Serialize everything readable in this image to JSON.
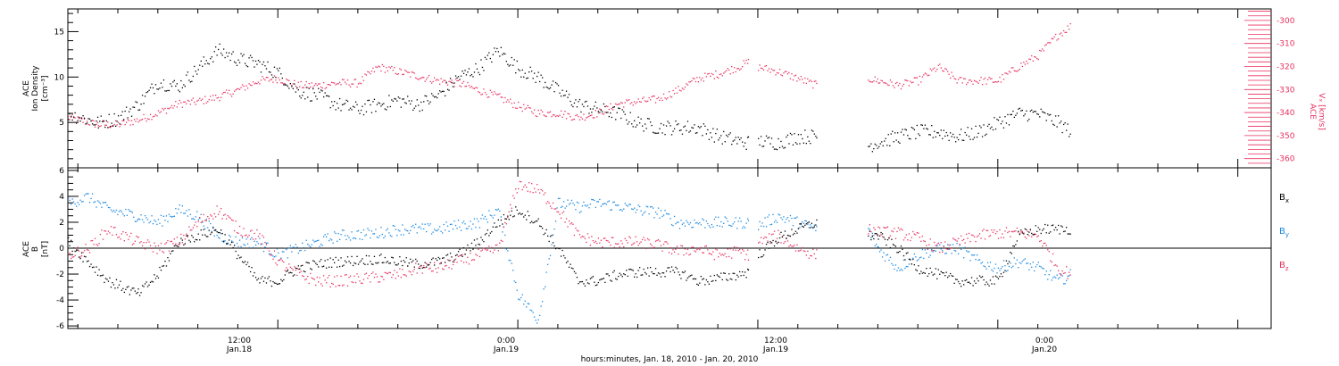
{
  "colors": {
    "black": "#000000",
    "pink": "#e8315f",
    "blue": "#1a88e0"
  },
  "x_axis": {
    "tick_labels": [
      {
        "time": "12:00",
        "date": "Jan.18"
      },
      {
        "time": "0:00",
        "date": "Jan.19"
      },
      {
        "time": "12:00",
        "date": "Jan.19"
      },
      {
        "time": "0:00",
        "date": "Jan.20"
      }
    ],
    "title": "hours:minutes, Jan. 18, 2010 - Jan. 20, 2010"
  },
  "chart_data": [
    {
      "type": "scatter",
      "panel": "top",
      "ylabel_lines": [
        "ACE",
        "Ion Density",
        "[cm⁻³]"
      ],
      "y2label_lines": [
        "ACE",
        "Vₓ [km/s]"
      ],
      "xlim": [
        "2010-01-18 01:30",
        "2010-01-20 13:40"
      ],
      "ylim": [
        0,
        17.5
      ],
      "y_ticks": [
        "5",
        "10",
        "15"
      ],
      "ylim_right": [
        -364,
        -295
      ],
      "y_ticks_right": [
        "-300",
        "-310",
        "-320",
        "-330",
        "-340",
        "-350",
        "-360"
      ],
      "data_gaps": [
        [
          "2010-01-19 11:30",
          "2010-01-19 12:00"
        ],
        [
          "2010-01-19 14:55",
          "2010-01-19 17:30"
        ]
      ],
      "series": [
        {
          "color": "black",
          "axis": "left",
          "x": [
            "2010-01-18 01:30",
            "2010-01-18 03:00",
            "2010-01-18 04:00",
            "2010-01-18 05:00",
            "2010-01-18 06:00",
            "2010-01-18 07:00",
            "2010-01-18 08:00",
            "2010-01-18 09:00",
            "2010-01-18 10:00",
            "2010-01-18 11:00",
            "2010-01-18 12:00",
            "2010-01-18 13:00",
            "2010-01-18 14:00",
            "2010-01-18 15:00",
            "2010-01-18 16:00",
            "2010-01-18 17:00",
            "2010-01-18 18:00",
            "2010-01-18 19:00",
            "2010-01-18 20:00",
            "2010-01-18 21:00",
            "2010-01-18 22:00",
            "2010-01-18 23:00",
            "2010-01-19 00:00",
            "2010-01-19 01:00",
            "2010-01-19 02:00",
            "2010-01-19 03:00",
            "2010-01-19 04:00",
            "2010-01-19 05:00",
            "2010-01-19 06:00",
            "2010-01-19 07:00",
            "2010-01-19 08:00",
            "2010-01-19 09:00",
            "2010-01-19 10:00",
            "2010-01-19 11:00",
            "2010-01-19 11:30",
            "2010-01-19 12:00",
            "2010-01-19 13:00",
            "2010-01-19 14:00",
            "2010-01-19 14:55",
            "2010-01-19 17:30",
            "2010-01-19 19:00",
            "2010-01-19 20:00",
            "2010-01-19 21:00",
            "2010-01-19 22:00",
            "2010-01-19 23:00",
            "2010-01-20 00:00",
            "2010-01-20 01:00",
            "2010-01-20 02:00",
            "2010-01-20 03:00",
            "2010-01-20 03:40"
          ],
          "y": [
            6,
            5,
            5.5,
            7,
            9.5,
            9,
            11,
            13,
            12,
            11.5,
            10.5,
            8.5,
            8,
            7,
            6.5,
            7,
            7.5,
            7,
            8,
            10,
            11,
            13,
            11,
            10,
            8.5,
            7,
            6.5,
            6,
            5,
            4.5,
            4.5,
            4.5,
            3.5,
            3,
            2.8,
            3,
            2.8,
            3.5,
            3.5,
            2.5,
            3.5,
            4,
            4,
            3.5,
            4,
            5,
            6,
            6,
            5,
            4
          ]
        },
        {
          "color": "pink",
          "axis": "right",
          "x": [
            "2010-01-18 01:30",
            "2010-01-18 03:00",
            "2010-01-18 04:00",
            "2010-01-18 05:00",
            "2010-01-18 06:00",
            "2010-01-18 07:00",
            "2010-01-18 08:00",
            "2010-01-18 09:00",
            "2010-01-18 10:00",
            "2010-01-18 11:00",
            "2010-01-18 12:00",
            "2010-01-18 13:00",
            "2010-01-18 14:00",
            "2010-01-18 15:00",
            "2010-01-18 16:00",
            "2010-01-18 17:00",
            "2010-01-18 18:00",
            "2010-01-18 19:00",
            "2010-01-18 20:00",
            "2010-01-18 21:00",
            "2010-01-18 22:00",
            "2010-01-18 23:00",
            "2010-01-19 00:00",
            "2010-01-19 01:00",
            "2010-01-19 02:00",
            "2010-01-19 03:00",
            "2010-01-19 04:00",
            "2010-01-19 05:00",
            "2010-01-19 06:00",
            "2010-01-19 07:00",
            "2010-01-19 08:00",
            "2010-01-19 09:00",
            "2010-01-19 10:00",
            "2010-01-19 11:00",
            "2010-01-19 11:30",
            "2010-01-19 12:00",
            "2010-01-19 13:00",
            "2010-01-19 14:00",
            "2010-01-19 14:55",
            "2010-01-19 17:30",
            "2010-01-19 18:00",
            "2010-01-19 19:00",
            "2010-01-19 20:00",
            "2010-01-19 21:00",
            "2010-01-19 22:00",
            "2010-01-19 23:00",
            "2010-01-20 00:00",
            "2010-01-20 01:00",
            "2010-01-20 02:00",
            "2010-01-20 03:00",
            "2010-01-20 03:40"
          ],
          "y": [
            -342,
            -345,
            -345,
            -343,
            -340,
            -336,
            -335,
            -333,
            -330,
            -326,
            -325,
            -328,
            -328,
            -327,
            -327,
            -320,
            -322,
            -324,
            -326,
            -327,
            -330,
            -333,
            -337,
            -340,
            -340,
            -342,
            -340,
            -336,
            -335,
            -334,
            -330,
            -325,
            -323,
            -320,
            -318,
            -320,
            -322,
            -325,
            -328,
            -325,
            -326,
            -328,
            -326,
            -320,
            -326,
            -326,
            -326,
            -320,
            -315,
            -306,
            -302
          ]
        }
      ]
    },
    {
      "type": "scatter",
      "panel": "bottom",
      "ylabel_lines": [
        "ACE",
        "B",
        "[nT]"
      ],
      "xlim": [
        "2010-01-18 01:30",
        "2010-01-20 13:40"
      ],
      "ylim": [
        -6.2,
        6.2
      ],
      "y_ticks": [
        "-6",
        "-4",
        "-2",
        "0",
        "2",
        "4",
        "6"
      ],
      "data_gaps": [
        [
          "2010-01-19 11:30",
          "2010-01-19 12:00"
        ],
        [
          "2010-01-19 14:55",
          "2010-01-19 17:30"
        ]
      ],
      "series": [
        {
          "name": "Bx",
          "legend_base": "B",
          "legend_sub": "x",
          "color": "black",
          "x": [
            "2010-01-18 01:30",
            "2010-01-18 02:30",
            "2010-01-18 03:30",
            "2010-01-18 05:00",
            "2010-01-18 06:00",
            "2010-01-18 07:00",
            "2010-01-18 08:00",
            "2010-01-18 09:00",
            "2010-01-18 10:00",
            "2010-01-18 11:00",
            "2010-01-18 12:00",
            "2010-01-18 13:00",
            "2010-01-18 14:00",
            "2010-01-18 15:00",
            "2010-01-18 17:00",
            "2010-01-18 18:00",
            "2010-01-18 19:00",
            "2010-01-18 20:00",
            "2010-01-18 21:00",
            "2010-01-18 22:00",
            "2010-01-18 23:00",
            "2010-01-19 00:00",
            "2010-01-19 01:00",
            "2010-01-19 02:00",
            "2010-01-19 03:00",
            "2010-01-19 04:00",
            "2010-01-19 05:00",
            "2010-01-19 06:00",
            "2010-01-19 07:00",
            "2010-01-19 08:00",
            "2010-01-19 09:00",
            "2010-01-19 10:00",
            "2010-01-19 11:00",
            "2010-01-19 11:30",
            "2010-01-19 12:00",
            "2010-01-19 13:00",
            "2010-01-19 14:00",
            "2010-01-19 14:55",
            "2010-01-19 17:30",
            "2010-01-19 18:00",
            "2010-01-19 19:00",
            "2010-01-19 20:00",
            "2010-01-19 21:00",
            "2010-01-19 22:00",
            "2010-01-19 23:00",
            "2010-01-20 00:00",
            "2010-01-20 01:00",
            "2010-01-20 02:00",
            "2010-01-20 03:00",
            "2010-01-20 03:40"
          ],
          "y": [
            0.5,
            -1,
            -2.5,
            -3.5,
            -2,
            0.5,
            1,
            1.5,
            -0.5,
            -2.5,
            -2.5,
            -1.5,
            -1.2,
            -1,
            -0.8,
            -1,
            -1.2,
            -1,
            -0.5,
            0.5,
            2,
            3,
            2,
            0,
            -2.5,
            -2.5,
            -2,
            -1.8,
            -1.8,
            -1.8,
            -2.5,
            -2.3,
            -2,
            -1.8,
            -0.5,
            0.8,
            1.5,
            2,
            1,
            1,
            0,
            -1.5,
            -2,
            -2.5,
            -2.5,
            -2.5,
            1,
            1.5,
            1.5,
            1.5
          ]
        },
        {
          "name": "By",
          "legend_base": "B",
          "legend_sub": "y",
          "color": "blue",
          "x": [
            "2010-01-18 01:30",
            "2010-01-18 02:30",
            "2010-01-18 03:30",
            "2010-01-18 05:00",
            "2010-01-18 06:00",
            "2010-01-18 07:00",
            "2010-01-18 08:00",
            "2010-01-18 09:00",
            "2010-01-18 10:00",
            "2010-01-18 11:00",
            "2010-01-18 12:00",
            "2010-01-18 13:00",
            "2010-01-18 14:00",
            "2010-01-18 15:00",
            "2010-01-18 17:00",
            "2010-01-18 18:00",
            "2010-01-18 19:00",
            "2010-01-18 20:00",
            "2010-01-18 21:00",
            "2010-01-18 22:00",
            "2010-01-18 23:00",
            "2010-01-19 00:00",
            "2010-01-19 01:00",
            "2010-01-19 02:00",
            "2010-01-19 03:00",
            "2010-01-19 04:00",
            "2010-01-19 05:00",
            "2010-01-19 06:00",
            "2010-01-19 07:00",
            "2010-01-19 08:00",
            "2010-01-19 09:00",
            "2010-01-19 10:00",
            "2010-01-19 11:00",
            "2010-01-19 11:30",
            "2010-01-19 12:00",
            "2010-01-19 13:00",
            "2010-01-19 14:00",
            "2010-01-19 14:55",
            "2010-01-19 17:30",
            "2010-01-19 18:00",
            "2010-01-19 19:00",
            "2010-01-19 20:00",
            "2010-01-19 21:00",
            "2010-01-19 22:00",
            "2010-01-19 23:00",
            "2010-01-20 00:00",
            "2010-01-20 01:00",
            "2010-01-20 02:00",
            "2010-01-20 03:00",
            "2010-01-20 03:40"
          ],
          "y": [
            3.5,
            4,
            3,
            2.5,
            2,
            3,
            2.5,
            1,
            0.5,
            0.5,
            -0.5,
            0,
            0.5,
            1,
            1.2,
            1.5,
            1.5,
            1.5,
            1.8,
            2,
            3,
            -3.5,
            -5.5,
            3.5,
            3.2,
            3.5,
            3.3,
            3,
            2.8,
            2,
            2,
            2,
            2,
            2,
            1.8,
            2.5,
            2,
            1.5,
            1.5,
            0,
            -1.5,
            -0.5,
            0,
            0,
            -1,
            -1.5,
            -1,
            -1.5,
            -2.5,
            -2
          ]
        },
        {
          "name": "Bz",
          "legend_base": "B",
          "legend_sub": "z",
          "color": "pink",
          "x": [
            "2010-01-18 01:30",
            "2010-01-18 02:30",
            "2010-01-18 03:30",
            "2010-01-18 05:00",
            "2010-01-18 06:00",
            "2010-01-18 07:00",
            "2010-01-18 08:00",
            "2010-01-18 09:00",
            "2010-01-18 10:00",
            "2010-01-18 11:00",
            "2010-01-18 12:00",
            "2010-01-18 13:00",
            "2010-01-18 14:00",
            "2010-01-18 15:00",
            "2010-01-18 17:00",
            "2010-01-18 18:00",
            "2010-01-18 19:00",
            "2010-01-18 20:00",
            "2010-01-18 21:00",
            "2010-01-18 22:00",
            "2010-01-18 23:00",
            "2010-01-19 00:00",
            "2010-01-19 01:00",
            "2010-01-19 02:00",
            "2010-01-19 03:00",
            "2010-01-19 04:00",
            "2010-01-19 05:00",
            "2010-01-19 06:00",
            "2010-01-19 07:00",
            "2010-01-19 08:00",
            "2010-01-19 09:00",
            "2010-01-19 10:00",
            "2010-01-19 11:00",
            "2010-01-19 11:30",
            "2010-01-19 12:00",
            "2010-01-19 13:00",
            "2010-01-19 14:00",
            "2010-01-19 14:55",
            "2010-01-19 17:30",
            "2010-01-19 18:00",
            "2010-01-19 19:00",
            "2010-01-19 20:00",
            "2010-01-19 21:00",
            "2010-01-19 22:00",
            "2010-01-19 23:00",
            "2010-01-20 00:00",
            "2010-01-20 01:00",
            "2010-01-20 02:00",
            "2010-01-20 03:00",
            "2010-01-20 03:40"
          ],
          "y": [
            -0.5,
            0,
            1.5,
            0.5,
            0,
            0.5,
            2,
            3,
            1.5,
            1,
            -1,
            -2,
            -2.5,
            -2.5,
            -2.2,
            -2,
            -1.5,
            -1.5,
            -1,
            -0.5,
            0,
            5,
            4.5,
            3,
            1,
            0.5,
            0.5,
            0.5,
            0.3,
            -0.2,
            0,
            -0.5,
            -0.2,
            -0.5,
            0.5,
            1,
            0,
            -0.5,
            1.5,
            1.3,
            1.2,
            0.8,
            0,
            0.5,
            1,
            1.2,
            1.2,
            1,
            -1.5,
            -2
          ]
        }
      ]
    }
  ]
}
